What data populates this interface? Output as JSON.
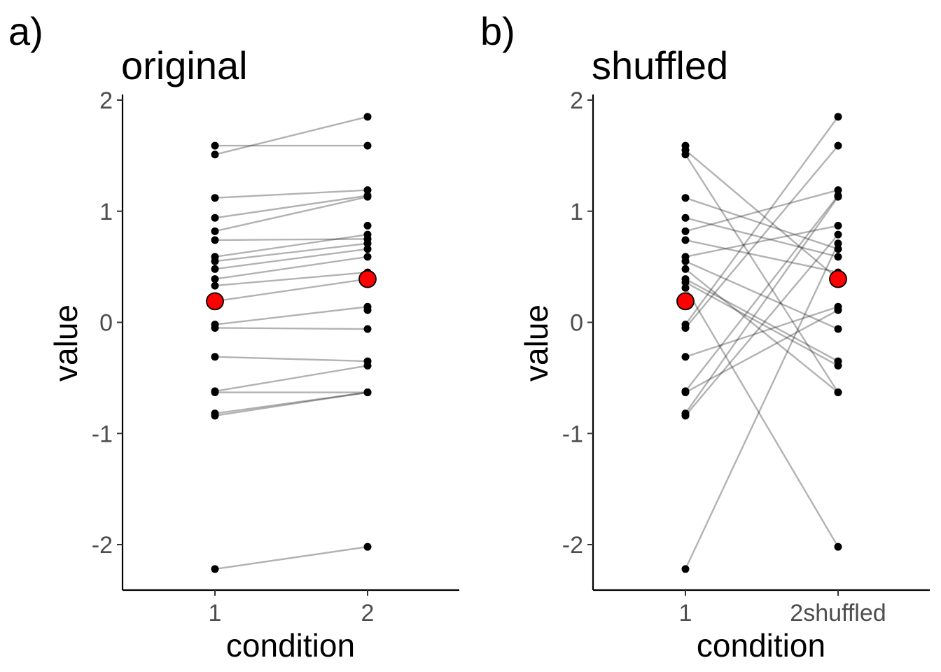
{
  "chart_data": [
    {
      "type": "line",
      "tag": "a)",
      "title": "original",
      "xlabel": "condition",
      "ylabel": "value",
      "categories": [
        "1",
        "2"
      ],
      "ylim": [
        -2.4,
        2.05
      ],
      "yticks": [
        "-2",
        "-1",
        "0",
        "1",
        "2"
      ],
      "ytick_values": [
        -2,
        -1,
        0,
        1,
        2
      ],
      "grid": false,
      "legend": "none",
      "colors": {
        "line": "#000000",
        "point": "#000000",
        "mean": "#ff0000"
      },
      "series": [
        {
          "values": [
            -2.22,
            -2.02
          ]
        },
        {
          "values": [
            -0.84,
            -0.63
          ]
        },
        {
          "values": [
            -0.82,
            -0.63
          ]
        },
        {
          "values": [
            -0.63,
            -0.63
          ]
        },
        {
          "values": [
            -0.62,
            -0.39
          ]
        },
        {
          "values": [
            -0.31,
            -0.35
          ]
        },
        {
          "values": [
            -0.05,
            -0.06
          ]
        },
        {
          "values": [
            -0.02,
            0.14
          ]
        },
        {
          "values": [
            0.19,
            0.39
          ]
        },
        {
          "values": [
            0.33,
            0.45
          ]
        },
        {
          "values": [
            0.39,
            0.59
          ]
        },
        {
          "values": [
            0.48,
            0.66
          ]
        },
        {
          "values": [
            0.55,
            0.71
          ]
        },
        {
          "values": [
            0.59,
            0.79
          ]
        },
        {
          "values": [
            0.74,
            0.75
          ]
        },
        {
          "values": [
            0.82,
            1.13
          ]
        },
        {
          "values": [
            0.94,
            1.14
          ]
        },
        {
          "values": [
            1.12,
            1.19
          ]
        },
        {
          "values": [
            1.51,
            1.85
          ]
        },
        {
          "values": [
            1.59,
            1.59
          ]
        }
      ],
      "extra_points": [
        {
          "x": "2",
          "y": 0.11
        },
        {
          "x": "2",
          "y": 0.87
        }
      ],
      "means": [
        0.19,
        0.39
      ]
    },
    {
      "type": "line",
      "tag": "b)",
      "title": "shuffled",
      "xlabel": "condition",
      "ylabel": "value",
      "categories": [
        "1",
        "2shuffled"
      ],
      "ylim": [
        -2.4,
        2.05
      ],
      "yticks": [
        "-2",
        "-1",
        "0",
        "1",
        "2"
      ],
      "ytick_values": [
        -2,
        -1,
        0,
        1,
        2
      ],
      "grid": false,
      "legend": "none",
      "colors": {
        "line": "#000000",
        "point": "#000000",
        "mean": "#ff0000"
      },
      "series": [
        {
          "values": [
            -2.22,
            0.71
          ]
        },
        {
          "values": [
            -0.84,
            0.79
          ]
        },
        {
          "values": [
            -0.82,
            1.13
          ]
        },
        {
          "values": [
            -0.63,
            0.11
          ]
        },
        {
          "values": [
            -0.62,
            1.14
          ]
        },
        {
          "values": [
            -0.31,
            0.14
          ]
        },
        {
          "values": [
            -0.05,
            1.59
          ]
        },
        {
          "values": [
            -0.02,
            1.85
          ]
        },
        {
          "values": [
            0.31,
            -2.02
          ]
        },
        {
          "values": [
            0.36,
            -0.39
          ]
        },
        {
          "values": [
            0.39,
            -0.35
          ]
        },
        {
          "values": [
            0.48,
            -0.63
          ]
        },
        {
          "values": [
            0.55,
            -0.06
          ]
        },
        {
          "values": [
            0.59,
            0.87
          ]
        },
        {
          "values": [
            0.74,
            0.45
          ]
        },
        {
          "values": [
            0.82,
            1.19
          ]
        },
        {
          "values": [
            0.94,
            0.59
          ]
        },
        {
          "values": [
            1.12,
            0.66
          ]
        },
        {
          "values": [
            1.51,
            -0.63
          ]
        },
        {
          "values": [
            1.55,
            0.39
          ]
        }
      ],
      "extra_points": [
        {
          "x": "1",
          "y": 1.59
        }
      ],
      "means": [
        0.19,
        0.39
      ]
    }
  ]
}
